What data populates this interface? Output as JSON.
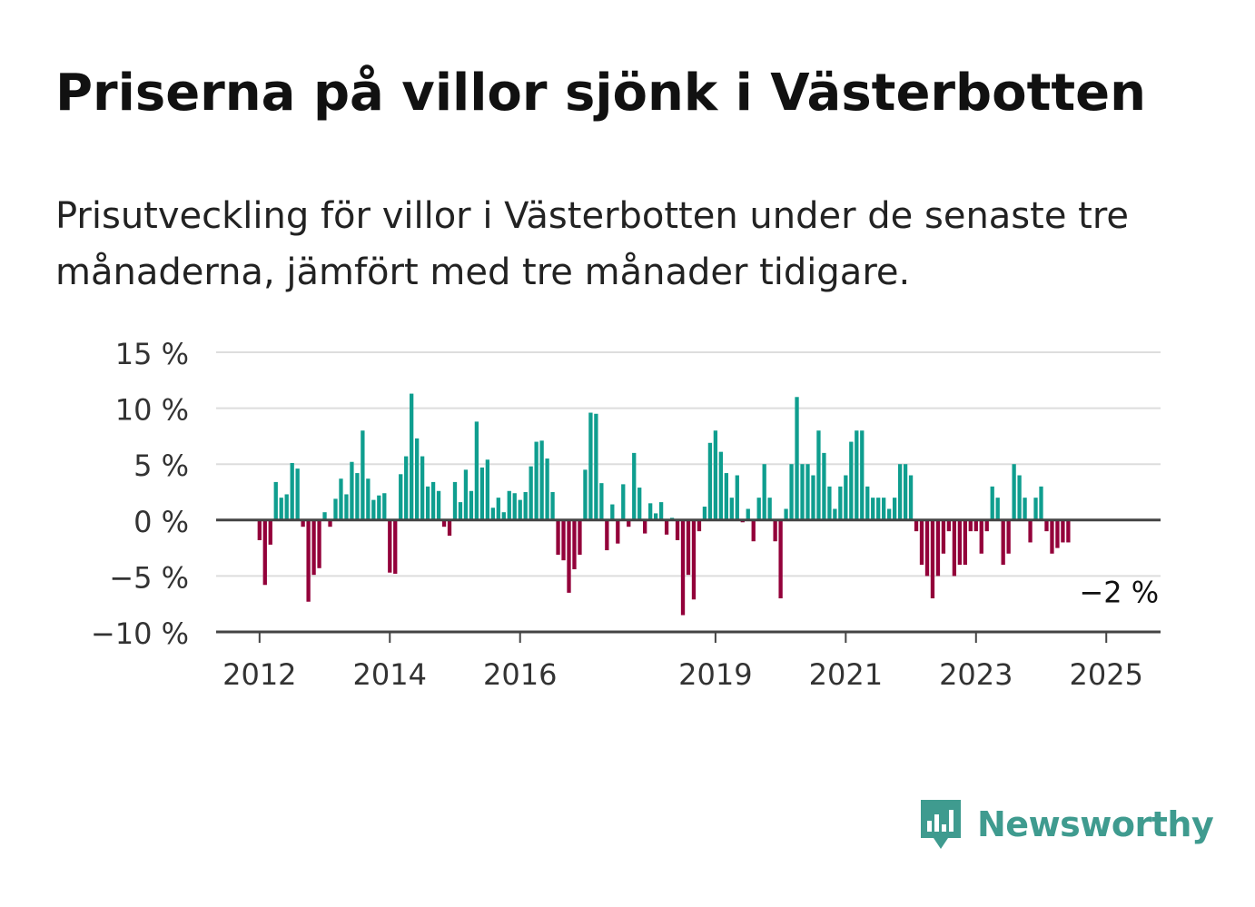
{
  "title": "Priserna på villor sjönk i Västerbotten",
  "subtitle": "Prisutveckling för villor i Västerbotten under de senaste tre månaderna, jämfört med tre månader tidigare.",
  "brand": {
    "name": "Newsworthy",
    "icon": "newsworthy-logo-icon"
  },
  "colors": {
    "positive": "#0f9e8f",
    "negative": "#93003a",
    "grid": "#dddddd",
    "axis": "#444444",
    "brand": "#3f9b8f"
  },
  "chart_data": {
    "type": "bar",
    "title": "Priserna på villor sjönk i Västerbotten",
    "xlabel": "",
    "ylabel": "",
    "ylim": [
      -10,
      15
    ],
    "xlim": [
      "2011-05",
      "2025-11"
    ],
    "grid": true,
    "y_ticks": [
      {
        "value": 15,
        "label": "15 %"
      },
      {
        "value": 10,
        "label": "10 %"
      },
      {
        "value": 5,
        "label": "5 %"
      },
      {
        "value": 0,
        "label": "0 %"
      },
      {
        "value": -5,
        "label": "−5 %"
      },
      {
        "value": -10,
        "label": "−10 %"
      }
    ],
    "x_ticks": [
      {
        "date": "2012-01",
        "label": "2012"
      },
      {
        "date": "2014-01",
        "label": "2014"
      },
      {
        "date": "2016-01",
        "label": "2016"
      },
      {
        "date": "2019-01",
        "label": "2019"
      },
      {
        "date": "2021-01",
        "label": "2021"
      },
      {
        "date": "2023-01",
        "label": "2023"
      },
      {
        "date": "2025-01",
        "label": "2025"
      }
    ],
    "annotations": [
      {
        "date": "2025-03",
        "value": -2,
        "label": "−2 %"
      }
    ],
    "series": [
      {
        "values": [
          [
            "2012-01",
            -1.8
          ],
          [
            "2012-02",
            -5.8
          ],
          [
            "2012-03",
            -2.2
          ],
          [
            "2012-04",
            3.4
          ],
          [
            "2012-05",
            2.0
          ],
          [
            "2012-06",
            2.3
          ],
          [
            "2012-07",
            5.1
          ],
          [
            "2012-08",
            4.6
          ],
          [
            "2012-09",
            -0.6
          ],
          [
            "2012-10",
            -7.3
          ],
          [
            "2012-11",
            -4.9
          ],
          [
            "2012-12",
            -4.3
          ],
          [
            "2013-01",
            0.7
          ],
          [
            "2013-02",
            -0.6
          ],
          [
            "2013-03",
            1.9
          ],
          [
            "2013-04",
            3.7
          ],
          [
            "2013-05",
            2.3
          ],
          [
            "2013-06",
            5.2
          ],
          [
            "2013-07",
            4.2
          ],
          [
            "2013-08",
            8.0
          ],
          [
            "2013-09",
            3.7
          ],
          [
            "2013-10",
            1.8
          ],
          [
            "2013-11",
            2.2
          ],
          [
            "2013-12",
            2.4
          ],
          [
            "2014-01",
            -4.7
          ],
          [
            "2014-02",
            -4.8
          ],
          [
            "2014-03",
            4.1
          ],
          [
            "2014-04",
            5.7
          ],
          [
            "2014-05",
            11.3
          ],
          [
            "2014-06",
            7.3
          ],
          [
            "2014-07",
            5.7
          ],
          [
            "2014-08",
            3.0
          ],
          [
            "2014-09",
            3.4
          ],
          [
            "2014-10",
            2.6
          ],
          [
            "2014-11",
            -0.6
          ],
          [
            "2014-12",
            -1.4
          ],
          [
            "2015-01",
            3.4
          ],
          [
            "2015-02",
            1.6
          ],
          [
            "2015-03",
            4.5
          ],
          [
            "2015-04",
            2.6
          ],
          [
            "2015-05",
            8.8
          ],
          [
            "2015-06",
            4.7
          ],
          [
            "2015-07",
            5.4
          ],
          [
            "2015-08",
            1.1
          ],
          [
            "2015-09",
            2.0
          ],
          [
            "2015-10",
            0.7
          ],
          [
            "2015-11",
            2.6
          ],
          [
            "2015-12",
            2.4
          ],
          [
            "2016-01",
            1.8
          ],
          [
            "2016-02",
            2.5
          ],
          [
            "2016-03",
            4.8
          ],
          [
            "2016-04",
            7.0
          ],
          [
            "2016-05",
            7.1
          ],
          [
            "2016-06",
            5.5
          ],
          [
            "2016-07",
            2.5
          ],
          [
            "2016-08",
            -3.1
          ],
          [
            "2016-09",
            -3.6
          ],
          [
            "2016-10",
            -6.5
          ],
          [
            "2016-11",
            -4.4
          ],
          [
            "2016-12",
            -3.1
          ],
          [
            "2017-01",
            4.5
          ],
          [
            "2017-02",
            9.6
          ],
          [
            "2017-03",
            9.5
          ],
          [
            "2017-04",
            3.3
          ],
          [
            "2017-05",
            -2.7
          ],
          [
            "2017-06",
            1.4
          ],
          [
            "2017-07",
            -2.1
          ],
          [
            "2017-08",
            3.2
          ],
          [
            "2017-09",
            -0.6
          ],
          [
            "2017-10",
            6.0
          ],
          [
            "2017-11",
            2.9
          ],
          [
            "2017-12",
            -1.2
          ],
          [
            "2018-01",
            1.5
          ],
          [
            "2018-02",
            0.6
          ],
          [
            "2018-03",
            1.6
          ],
          [
            "2018-04",
            -1.3
          ],
          [
            "2018-05",
            0.2
          ],
          [
            "2018-06",
            -1.8
          ],
          [
            "2018-07",
            -8.5
          ],
          [
            "2018-08",
            -4.9
          ],
          [
            "2018-09",
            -7.1
          ],
          [
            "2018-10",
            -1.0
          ],
          [
            "2018-11",
            1.2
          ],
          [
            "2018-12",
            6.9
          ],
          [
            "2019-01",
            8.0
          ],
          [
            "2019-02",
            6.1
          ],
          [
            "2019-03",
            4.2
          ],
          [
            "2019-04",
            2.0
          ],
          [
            "2019-05",
            4.0
          ],
          [
            "2019-06",
            -0.2
          ],
          [
            "2019-07",
            1.0
          ],
          [
            "2019-08",
            -1.9
          ],
          [
            "2019-09",
            2.0
          ],
          [
            "2019-10",
            5.0
          ],
          [
            "2019-11",
            2.0
          ],
          [
            "2019-12",
            -1.9
          ],
          [
            "2020-01",
            -7.0
          ],
          [
            "2020-02",
            1.0
          ],
          [
            "2020-03",
            5.0
          ],
          [
            "2020-04",
            11.0
          ],
          [
            "2020-05",
            5.0
          ],
          [
            "2020-06",
            5.0
          ],
          [
            "2020-07",
            4.0
          ],
          [
            "2020-08",
            8.0
          ],
          [
            "2020-09",
            6.0
          ],
          [
            "2020-10",
            3.0
          ],
          [
            "2020-11",
            1.0
          ],
          [
            "2020-12",
            3.0
          ],
          [
            "2021-01",
            4.0
          ],
          [
            "2021-02",
            7.0
          ],
          [
            "2021-03",
            8.0
          ],
          [
            "2021-04",
            8.0
          ],
          [
            "2021-05",
            3.0
          ],
          [
            "2021-06",
            2.0
          ],
          [
            "2021-07",
            2.0
          ],
          [
            "2021-08",
            2.0
          ],
          [
            "2021-09",
            1.0
          ],
          [
            "2021-10",
            2.0
          ],
          [
            "2021-11",
            5.0
          ],
          [
            "2021-12",
            5.0
          ],
          [
            "2022-01",
            4.0
          ],
          [
            "2022-02",
            -1.0
          ],
          [
            "2022-03",
            -4.0
          ],
          [
            "2022-04",
            -5.0
          ],
          [
            "2022-05",
            -7.0
          ],
          [
            "2022-06",
            -5.0
          ],
          [
            "2022-07",
            -3.0
          ],
          [
            "2022-08",
            -1.0
          ],
          [
            "2022-09",
            -5.0
          ],
          [
            "2022-10",
            -4.0
          ],
          [
            "2022-11",
            -4.0
          ],
          [
            "2022-12",
            -1.0
          ],
          [
            "2023-01",
            -1.0
          ],
          [
            "2023-02",
            -3.0
          ],
          [
            "2023-03",
            -1.0
          ],
          [
            "2023-04",
            3.0
          ],
          [
            "2023-05",
            2.0
          ],
          [
            "2023-06",
            -4.0
          ],
          [
            "2023-07",
            -3.0
          ],
          [
            "2023-08",
            5.0
          ],
          [
            "2023-09",
            4.0
          ],
          [
            "2023-10",
            2.0
          ],
          [
            "2023-11",
            -2.0
          ],
          [
            "2023-12",
            2.0
          ],
          [
            "2024-01",
            3.0
          ],
          [
            "2024-02",
            -1.0
          ],
          [
            "2024-03",
            -3.0
          ],
          [
            "2024-04",
            -2.5
          ],
          [
            "2024-05",
            -2.0
          ],
          [
            "2024-06",
            -2.0
          ]
        ]
      }
    ]
  }
}
